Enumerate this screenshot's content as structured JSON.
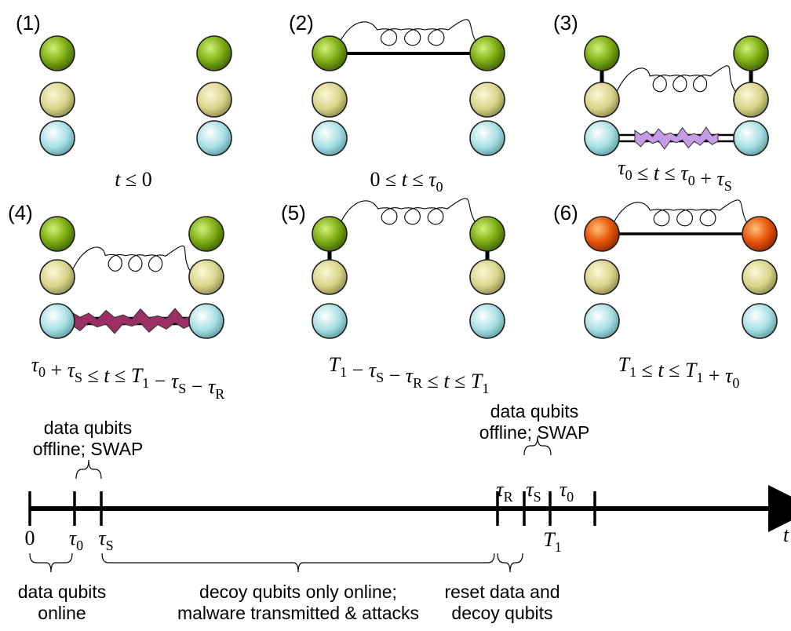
{
  "panels": [
    {
      "number": "(1)",
      "condition": [
        "t",
        "≤",
        "0"
      ]
    },
    {
      "number": "(2)",
      "condition": [
        "0",
        "≤",
        "t",
        "≤",
        "τ",
        "0"
      ]
    },
    {
      "number": "(3)",
      "condition": [
        "τ",
        "0",
        "≤",
        "t",
        "≤",
        "τ",
        "0",
        "+",
        "τ",
        "S"
      ]
    },
    {
      "number": "(4)",
      "condition": [
        "τ",
        "0",
        "+",
        "τ",
        "S",
        "≤",
        "t",
        "≤",
        "T",
        "1",
        "−",
        "τ",
        "S",
        "−",
        "τ",
        "R"
      ]
    },
    {
      "number": "(5)",
      "condition": [
        "T",
        "1",
        "−",
        "τ",
        "S",
        "−",
        "τ",
        "R",
        "≤",
        "t",
        "≤",
        "T",
        "1"
      ]
    },
    {
      "number": "(6)",
      "condition": [
        "T",
        "1",
        "≤",
        "t",
        "≤",
        "T",
        "1",
        "+",
        "τ",
        "0"
      ]
    }
  ],
  "timeline": {
    "axis_label": "t",
    "tick_labels": {
      "zero": "0",
      "tau0": {
        "base": "τ",
        "sub": "0"
      },
      "tauS": {
        "base": "τ",
        "sub": "S"
      },
      "tauR_top": {
        "base": "τ",
        "sub": "R"
      },
      "tauS_top": {
        "base": "τ",
        "sub": "S"
      },
      "tau0_top": {
        "base": "τ",
        "sub": "0"
      },
      "T1": {
        "base": "T",
        "sub": "1"
      }
    },
    "annotations": {
      "swap_left": [
        "data qubits",
        "offline; SWAP"
      ],
      "swap_right": [
        "data qubits",
        "offline; SWAP"
      ],
      "online": [
        "data qubits",
        "online"
      ],
      "decoy": [
        "decoy qubits only online;",
        "malware transmitted & attacks"
      ],
      "reset": [
        "reset data and",
        "decoy qubits"
      ]
    }
  },
  "colors": {
    "data_qubit": "#6e9b10",
    "data_qubit_final": "#e8550a",
    "memory_qubit": "#d9d48a",
    "decoy_qubit": "#a6dfe3",
    "attack_light": "#c79ae8",
    "attack_dark": "#9b2f63"
  }
}
